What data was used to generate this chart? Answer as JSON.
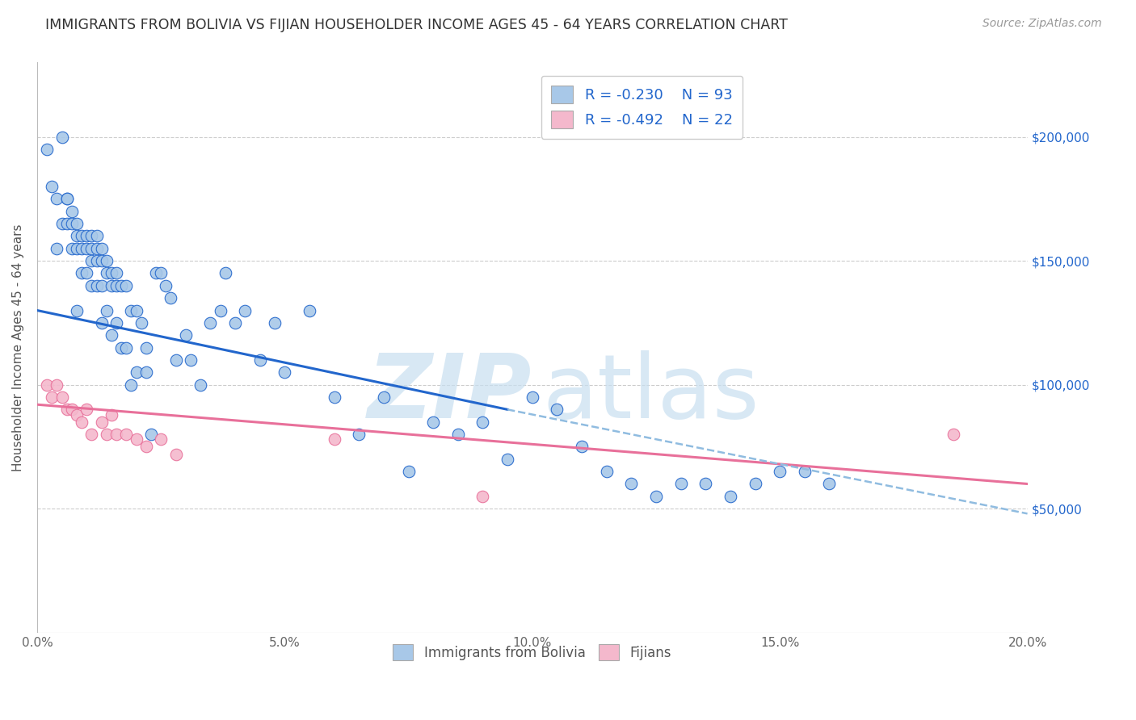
{
  "title": "IMMIGRANTS FROM BOLIVIA VS FIJIAN HOUSEHOLDER INCOME AGES 45 - 64 YEARS CORRELATION CHART",
  "source": "Source: ZipAtlas.com",
  "ylabel": "Householder Income Ages 45 - 64 years",
  "xlim": [
    0.0,
    0.2
  ],
  "ylim": [
    0,
    230000
  ],
  "xtick_labels": [
    "0.0%",
    "5.0%",
    "10.0%",
    "15.0%",
    "20.0%"
  ],
  "xtick_values": [
    0.0,
    0.05,
    0.1,
    0.15,
    0.2
  ],
  "ytick_labels": [
    "$50,000",
    "$100,000",
    "$150,000",
    "$200,000"
  ],
  "ytick_values": [
    50000,
    100000,
    150000,
    200000
  ],
  "legend_r1": "-0.230",
  "legend_n1": "93",
  "legend_r2": "-0.492",
  "legend_n2": "22",
  "color_bolivia": "#a8c8e8",
  "color_fijian": "#f4b8cc",
  "color_line_bolivia": "#2266cc",
  "color_line_fijian": "#e8709a",
  "color_dash": "#90bce0",
  "watermark_zip": "ZIP",
  "watermark_atlas": "atlas",
  "bolivia_scatter_x": [
    0.002,
    0.003,
    0.004,
    0.004,
    0.005,
    0.005,
    0.006,
    0.006,
    0.006,
    0.007,
    0.007,
    0.007,
    0.008,
    0.008,
    0.008,
    0.008,
    0.009,
    0.009,
    0.009,
    0.01,
    0.01,
    0.01,
    0.011,
    0.011,
    0.011,
    0.011,
    0.012,
    0.012,
    0.012,
    0.012,
    0.013,
    0.013,
    0.013,
    0.013,
    0.014,
    0.014,
    0.014,
    0.015,
    0.015,
    0.015,
    0.016,
    0.016,
    0.016,
    0.017,
    0.017,
    0.018,
    0.018,
    0.019,
    0.019,
    0.02,
    0.02,
    0.021,
    0.022,
    0.022,
    0.023,
    0.024,
    0.025,
    0.026,
    0.027,
    0.028,
    0.03,
    0.031,
    0.033,
    0.035,
    0.037,
    0.038,
    0.04,
    0.042,
    0.045,
    0.048,
    0.05,
    0.055,
    0.06,
    0.065,
    0.07,
    0.075,
    0.08,
    0.085,
    0.09,
    0.095,
    0.1,
    0.105,
    0.11,
    0.115,
    0.12,
    0.125,
    0.13,
    0.135,
    0.14,
    0.145,
    0.15,
    0.155,
    0.16
  ],
  "bolivia_scatter_y": [
    195000,
    180000,
    175000,
    155000,
    200000,
    165000,
    175000,
    165000,
    175000,
    170000,
    165000,
    155000,
    165000,
    160000,
    155000,
    130000,
    160000,
    155000,
    145000,
    160000,
    155000,
    145000,
    160000,
    155000,
    150000,
    140000,
    160000,
    155000,
    150000,
    140000,
    155000,
    150000,
    140000,
    125000,
    150000,
    145000,
    130000,
    145000,
    140000,
    120000,
    145000,
    140000,
    125000,
    140000,
    115000,
    140000,
    115000,
    130000,
    100000,
    130000,
    105000,
    125000,
    115000,
    105000,
    80000,
    145000,
    145000,
    140000,
    135000,
    110000,
    120000,
    110000,
    100000,
    125000,
    130000,
    145000,
    125000,
    130000,
    110000,
    125000,
    105000,
    130000,
    95000,
    80000,
    95000,
    65000,
    85000,
    80000,
    85000,
    70000,
    95000,
    90000,
    75000,
    65000,
    60000,
    55000,
    60000,
    60000,
    55000,
    60000,
    65000,
    65000,
    60000
  ],
  "fijian_scatter_x": [
    0.002,
    0.003,
    0.004,
    0.005,
    0.006,
    0.007,
    0.008,
    0.009,
    0.01,
    0.011,
    0.013,
    0.014,
    0.015,
    0.016,
    0.018,
    0.02,
    0.022,
    0.025,
    0.028,
    0.06,
    0.09,
    0.185
  ],
  "fijian_scatter_y": [
    100000,
    95000,
    100000,
    95000,
    90000,
    90000,
    88000,
    85000,
    90000,
    80000,
    85000,
    80000,
    88000,
    80000,
    80000,
    78000,
    75000,
    78000,
    72000,
    78000,
    55000,
    80000
  ],
  "bolivia_line_x": [
    0.0,
    0.095
  ],
  "bolivia_line_y": [
    130000,
    90000
  ],
  "fijian_line_x": [
    0.0,
    0.2
  ],
  "fijian_line_y": [
    92000,
    60000
  ],
  "dash_line_x": [
    0.095,
    0.2
  ],
  "dash_line_y": [
    90000,
    48000
  ]
}
